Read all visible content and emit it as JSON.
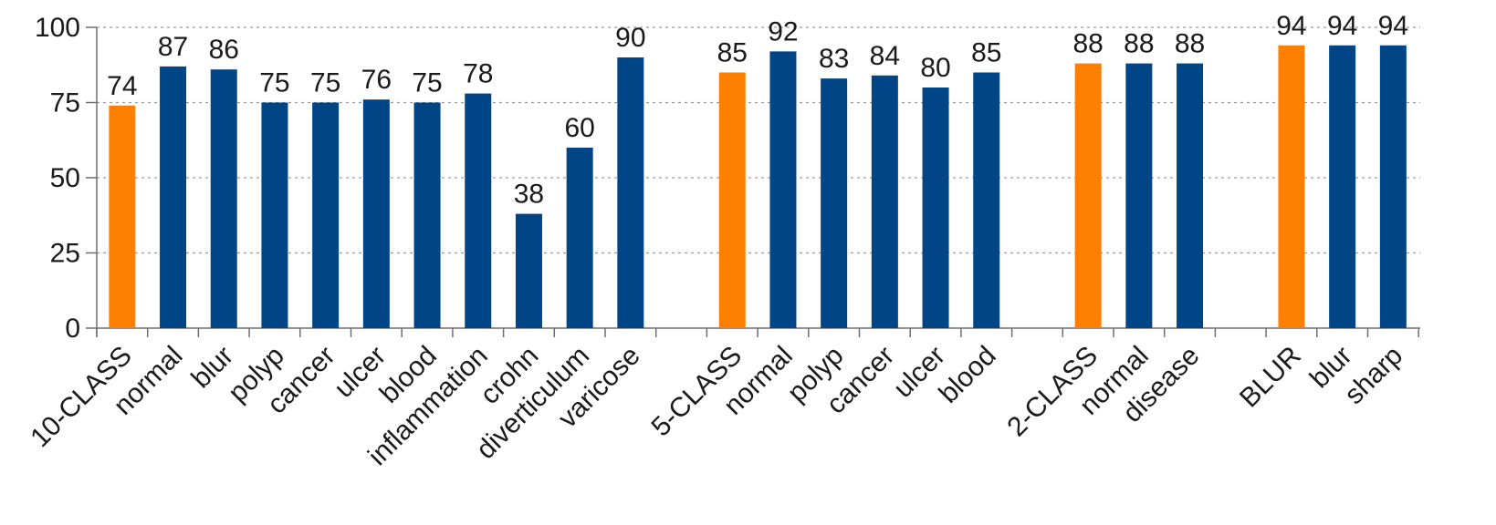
{
  "chart_data": {
    "type": "bar",
    "title": "",
    "xlabel": "",
    "ylabel": "",
    "ylim": [
      0,
      100
    ],
    "yticks": [
      0,
      25,
      50,
      75,
      100
    ],
    "grid": "horizontal dotted",
    "colors": {
      "group_total": "#ff8000",
      "class": "#004586"
    },
    "groups": [
      {
        "bars": [
          {
            "label": "10-CLASS",
            "value": 74,
            "kind": "group_total"
          },
          {
            "label": "normal",
            "value": 87,
            "kind": "class"
          },
          {
            "label": "blur",
            "value": 86,
            "kind": "class"
          },
          {
            "label": "polyp",
            "value": 75,
            "kind": "class"
          },
          {
            "label": "cancer",
            "value": 75,
            "kind": "class"
          },
          {
            "label": "ulcer",
            "value": 76,
            "kind": "class"
          },
          {
            "label": "blood",
            "value": 75,
            "kind": "class"
          },
          {
            "label": "inflammation",
            "value": 78,
            "kind": "class"
          },
          {
            "label": "crohn",
            "value": 38,
            "kind": "class"
          },
          {
            "label": "diverticulum",
            "value": 60,
            "kind": "class"
          },
          {
            "label": "varicose",
            "value": 90,
            "kind": "class"
          }
        ]
      },
      {
        "bars": [
          {
            "label": "5-CLASS",
            "value": 85,
            "kind": "group_total"
          },
          {
            "label": "normal",
            "value": 92,
            "kind": "class"
          },
          {
            "label": "polyp",
            "value": 83,
            "kind": "class"
          },
          {
            "label": "cancer",
            "value": 84,
            "kind": "class"
          },
          {
            "label": "ulcer",
            "value": 80,
            "kind": "class"
          },
          {
            "label": "blood",
            "value": 85,
            "kind": "class"
          }
        ]
      },
      {
        "bars": [
          {
            "label": "2-CLASS",
            "value": 88,
            "kind": "group_total"
          },
          {
            "label": "normal",
            "value": 88,
            "kind": "class"
          },
          {
            "label": "disease",
            "value": 88,
            "kind": "class"
          }
        ]
      },
      {
        "bars": [
          {
            "label": "BLUR",
            "value": 94,
            "kind": "group_total"
          },
          {
            "label": "blur",
            "value": 94,
            "kind": "class"
          },
          {
            "label": "sharp",
            "value": 94,
            "kind": "class"
          }
        ]
      }
    ]
  }
}
